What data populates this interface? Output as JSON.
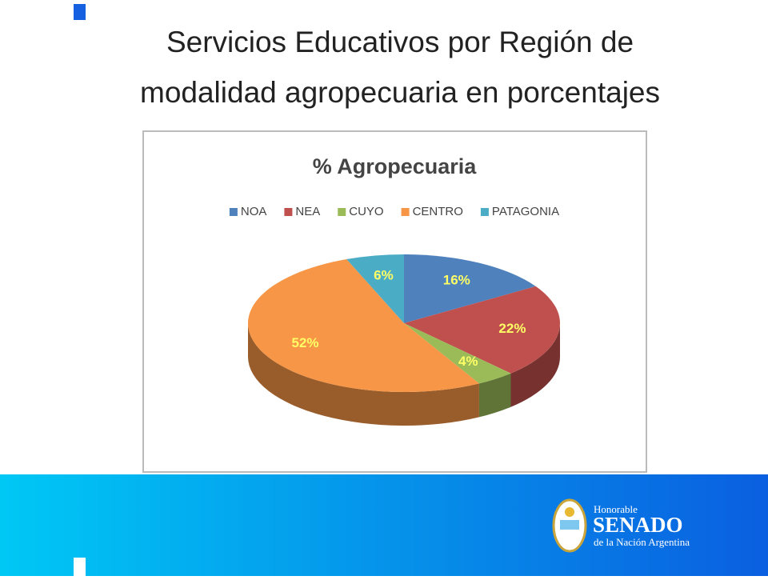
{
  "slide_title": [
    "Servicios Educativos por Región de",
    "modalidad agropecuaria en porcentajes"
  ],
  "chart_data": {
    "type": "pie3d",
    "title": "% Agropecuaria",
    "categories": [
      "NOA",
      "NEA",
      "CUYO",
      "CENTRO",
      "PATAGONIA"
    ],
    "values": [
      16,
      22,
      4,
      52,
      6
    ],
    "value_labels": [
      "16%",
      "22%",
      "4%",
      "52%",
      "6%"
    ],
    "colors": [
      "#4f81bd",
      "#c0504d",
      "#9bbb59",
      "#f79646",
      "#4bacc6"
    ],
    "legend": "top"
  },
  "footer": {
    "logo": [
      "Honorable",
      "SENADO",
      "de la Nación Argentina"
    ]
  }
}
